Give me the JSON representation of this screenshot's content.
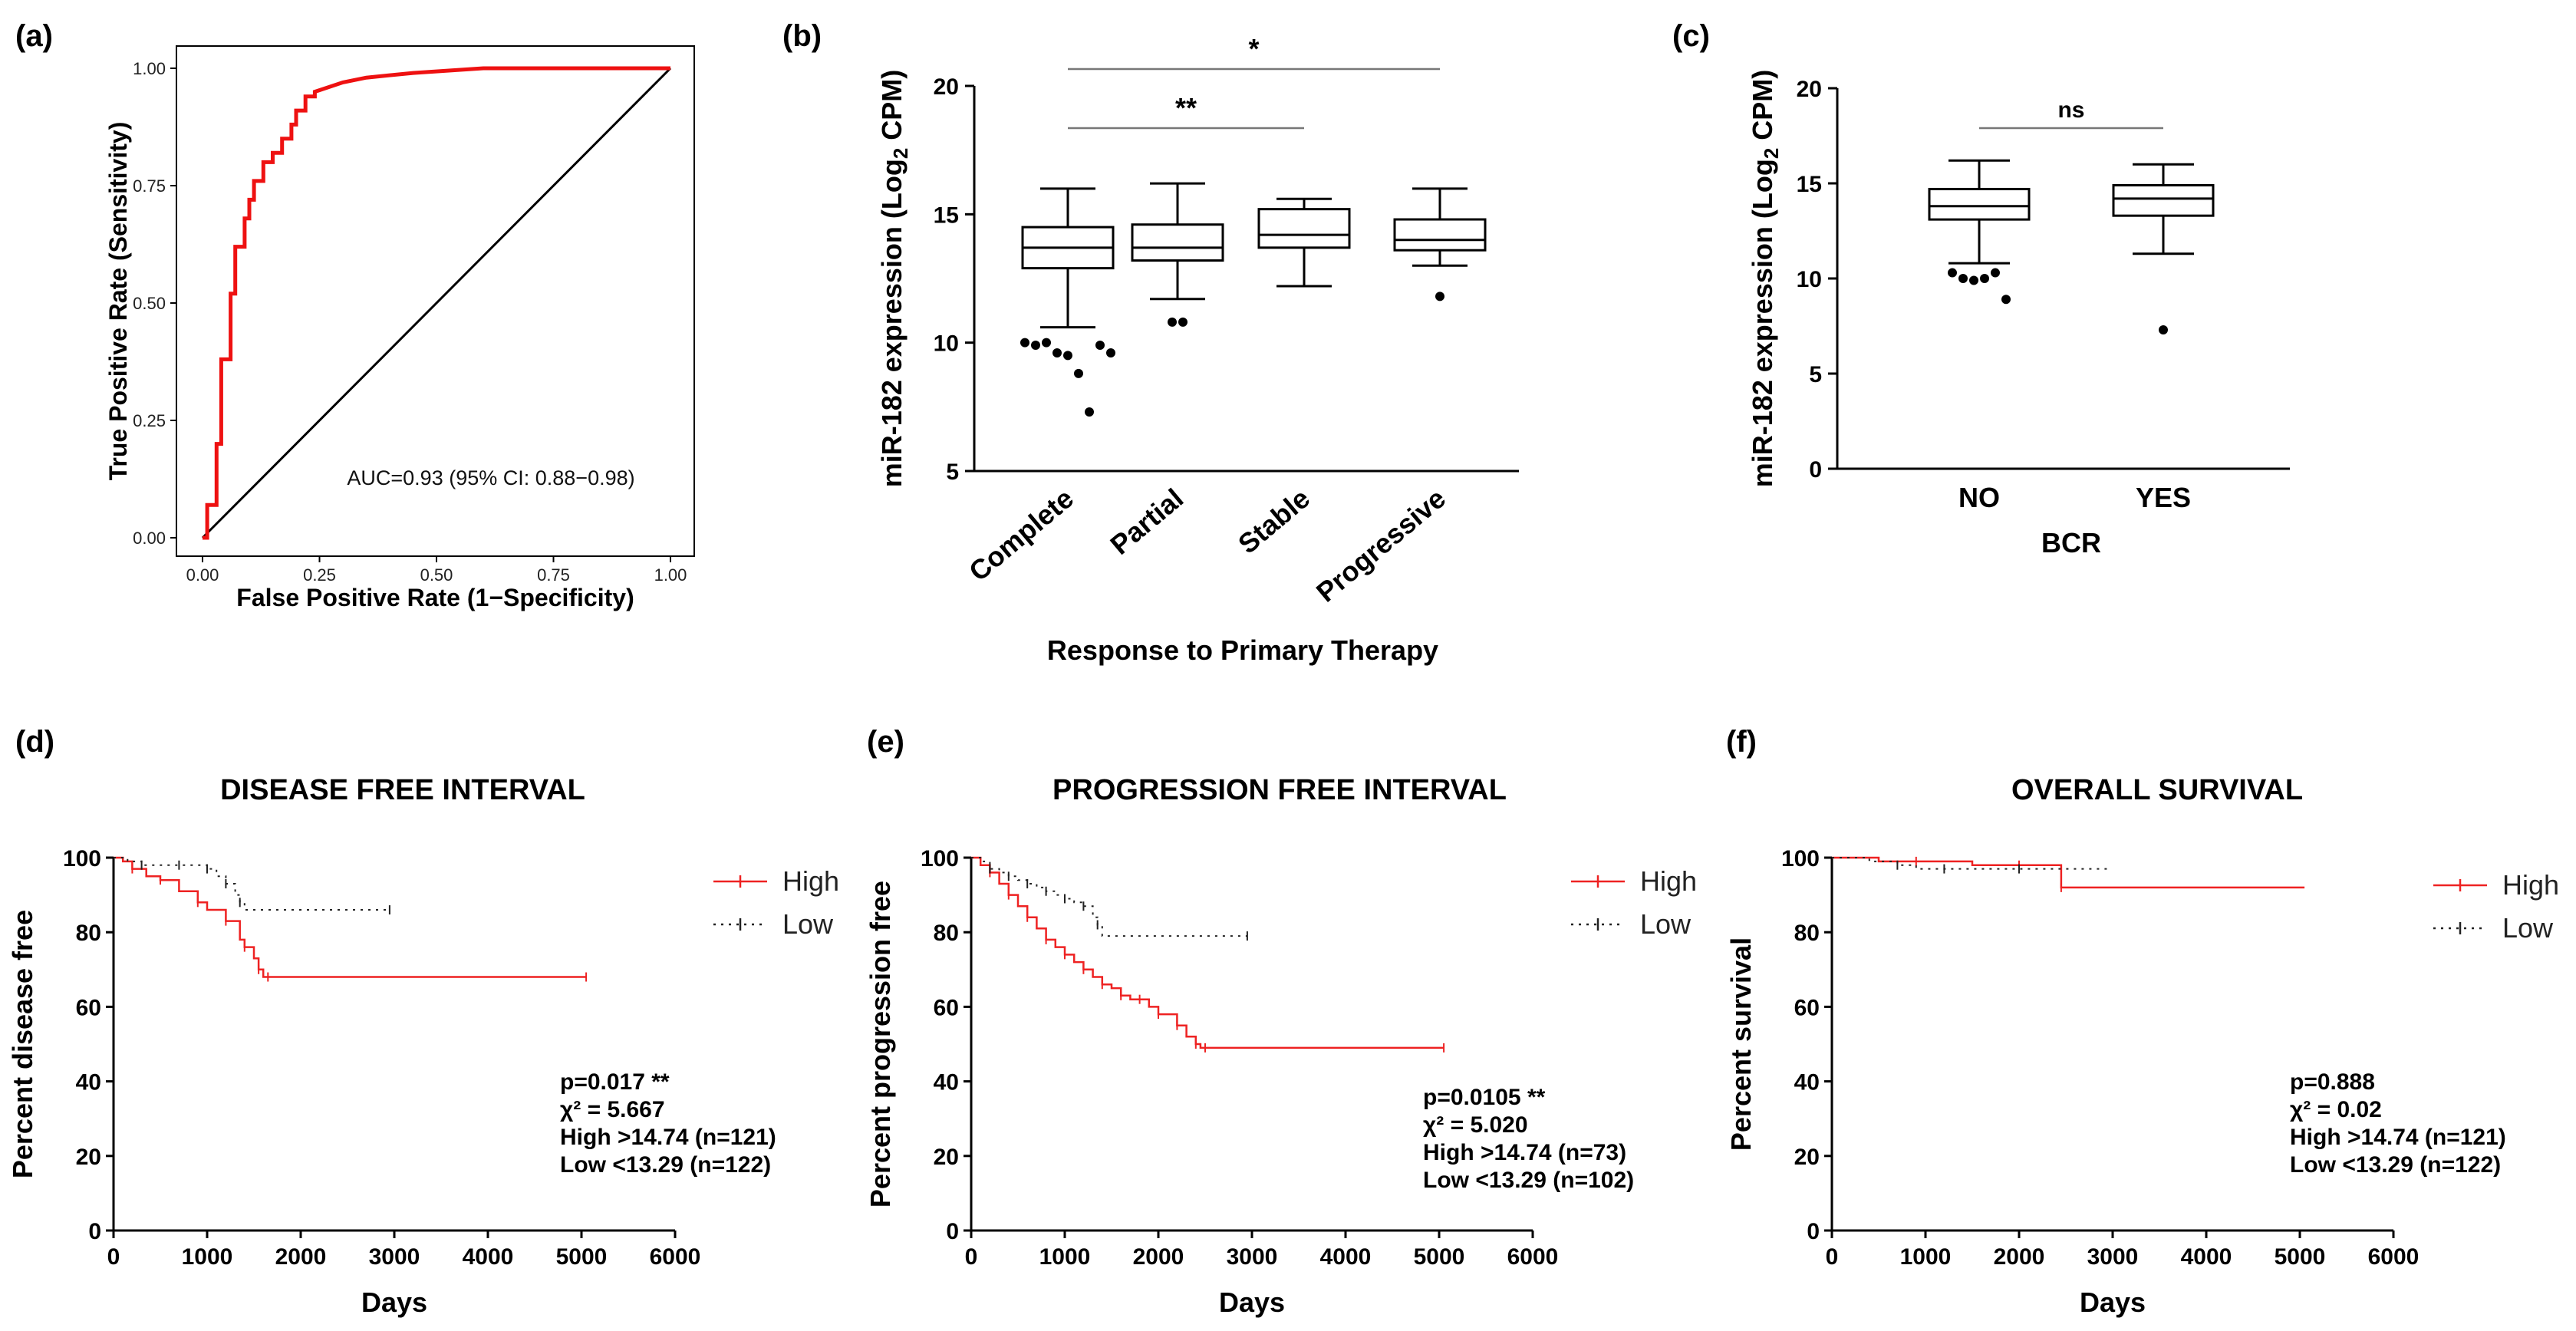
{
  "chart_data": [
    {
      "panel": "(a)",
      "type": "line",
      "xlabel": "False Positive Rate (1−Specificity)",
      "ylabel": "True Positive Rate (Sensitivity)",
      "xticks": [
        "0.00",
        "0.25",
        "0.50",
        "0.75",
        "1.00"
      ],
      "yticks": [
        "0.00",
        "0.25",
        "0.50",
        "0.75",
        "1.00"
      ],
      "xlim": [
        0,
        1
      ],
      "ylim": [
        0,
        1
      ],
      "annotation": "AUC=0.93 (95% CI: 0.88−0.98)",
      "color": "#ee1111",
      "roc": [
        [
          0,
          0
        ],
        [
          0.01,
          0
        ],
        [
          0.01,
          0.07
        ],
        [
          0.03,
          0.07
        ],
        [
          0.03,
          0.2
        ],
        [
          0.04,
          0.2
        ],
        [
          0.04,
          0.38
        ],
        [
          0.06,
          0.38
        ],
        [
          0.06,
          0.52
        ],
        [
          0.07,
          0.52
        ],
        [
          0.07,
          0.62
        ],
        [
          0.09,
          0.62
        ],
        [
          0.09,
          0.68
        ],
        [
          0.1,
          0.68
        ],
        [
          0.1,
          0.72
        ],
        [
          0.11,
          0.72
        ],
        [
          0.11,
          0.76
        ],
        [
          0.13,
          0.76
        ],
        [
          0.13,
          0.8
        ],
        [
          0.15,
          0.8
        ],
        [
          0.15,
          0.82
        ],
        [
          0.17,
          0.82
        ],
        [
          0.17,
          0.85
        ],
        [
          0.19,
          0.85
        ],
        [
          0.19,
          0.88
        ],
        [
          0.2,
          0.88
        ],
        [
          0.2,
          0.91
        ],
        [
          0.22,
          0.91
        ],
        [
          0.22,
          0.94
        ],
        [
          0.24,
          0.94
        ],
        [
          0.24,
          0.95
        ],
        [
          0.27,
          0.96
        ],
        [
          0.3,
          0.97
        ],
        [
          0.35,
          0.98
        ],
        [
          0.45,
          0.99
        ],
        [
          0.6,
          1.0
        ],
        [
          1.0,
          1.0
        ]
      ]
    },
    {
      "panel": "(b)",
      "type": "box",
      "xlabel": "Response to Primary Therapy",
      "ylabel": "miR-182 expression (Log",
      "ylabel_sub": "2",
      "ylabel_end": " CPM)",
      "ylim": [
        5,
        20
      ],
      "yticks": [
        "5",
        "10",
        "15",
        "20"
      ],
      "categories": [
        "Complete",
        "Partial",
        "Stable",
        "Progressive"
      ],
      "boxes": [
        {
          "min": 10.6,
          "q1": 12.9,
          "median": 13.7,
          "q3": 14.5,
          "max": 16.0,
          "outliers": [
            10.0,
            9.9,
            10.0,
            9.6,
            9.5,
            8.8,
            7.3,
            9.9,
            9.6
          ]
        },
        {
          "min": 11.7,
          "q1": 13.2,
          "median": 13.7,
          "q3": 14.6,
          "max": 16.2,
          "outliers": [
            10.8,
            10.8
          ]
        },
        {
          "min": 12.2,
          "q1": 13.7,
          "median": 14.2,
          "q3": 15.2,
          "max": 15.6,
          "outliers": []
        },
        {
          "min": 13.0,
          "q1": 13.6,
          "median": 14.0,
          "q3": 14.8,
          "max": 16.0,
          "outliers": [
            11.8
          ]
        }
      ],
      "sig": [
        {
          "from": 0,
          "to": 3,
          "label": "*"
        },
        {
          "from": 0,
          "to": 2,
          "label": "**"
        }
      ]
    },
    {
      "panel": "(c)",
      "type": "box",
      "xlabel": "BCR",
      "ylabel": "miR-182 expression (Log",
      "ylabel_sub": "2",
      "ylabel_end": " CPM)",
      "ylim": [
        0,
        20
      ],
      "yticks": [
        "0",
        "5",
        "10",
        "15",
        "20"
      ],
      "categories": [
        "NO",
        "YES"
      ],
      "boxes": [
        {
          "min": 10.8,
          "q1": 13.1,
          "median": 13.8,
          "q3": 14.7,
          "max": 16.2,
          "outliers": [
            10.3,
            10.0,
            9.9,
            10.0,
            10.3,
            8.9
          ]
        },
        {
          "min": 11.3,
          "q1": 13.3,
          "median": 14.2,
          "q3": 14.9,
          "max": 16.0,
          "outliers": [
            7.3
          ]
        }
      ],
      "sig": [
        {
          "from": 0,
          "to": 1,
          "label": "ns"
        }
      ]
    },
    {
      "panel": "(d)",
      "type": "line",
      "title": "DISEASE FREE INTERVAL",
      "xlabel": "Days",
      "ylabel": "Percent disease free",
      "xlim": [
        0,
        6000
      ],
      "ylim": [
        0,
        100
      ],
      "xticks": [
        "0",
        "1000",
        "2000",
        "3000",
        "4000",
        "5000",
        "6000"
      ],
      "yticks": [
        "0",
        "20",
        "40",
        "60",
        "80",
        "100"
      ],
      "legend": [
        "High",
        "Low"
      ],
      "stats": [
        "p=0.017 **",
        "χ² = 5.667",
        "High >14.74 (n=121)",
        "Low  <13.29 (n=122)"
      ],
      "series": [
        {
          "name": "High",
          "color": "#ee2222",
          "x": [
            0,
            100,
            200,
            350,
            500,
            700,
            900,
            1000,
            1200,
            1350,
            1400,
            1500,
            1550,
            1600,
            1650,
            3000,
            5050
          ],
          "y": [
            100,
            99,
            97,
            95,
            94,
            91,
            88,
            86,
            83,
            78,
            76,
            73,
            70,
            68,
            68,
            68,
            68
          ]
        },
        {
          "name": "Low",
          "color": "#222222",
          "x": [
            0,
            150,
            300,
            500,
            700,
            900,
            1000,
            1100,
            1200,
            1300,
            1350,
            1400,
            2950
          ],
          "y": [
            100,
            99,
            98,
            98,
            98,
            98,
            97,
            95,
            93,
            90,
            88,
            86,
            86
          ]
        }
      ]
    },
    {
      "panel": "(e)",
      "type": "line",
      "title": "PROGRESSION FREE INTERVAL",
      "xlabel": "Days",
      "ylabel": "Percent progression free",
      "xlim": [
        0,
        6000
      ],
      "ylim": [
        0,
        100
      ],
      "xticks": [
        "0",
        "1000",
        "2000",
        "3000",
        "4000",
        "5000",
        "6000"
      ],
      "yticks": [
        "0",
        "20",
        "40",
        "60",
        "80",
        "100"
      ],
      "legend": [
        "High",
        "Low"
      ],
      "stats": [
        "p=0.0105 **",
        "χ² = 5.020",
        "High >14.74 (n=73)",
        "Low  <13.29 (n=102)"
      ],
      "series": [
        {
          "name": "High",
          "color": "#ee2222",
          "x": [
            0,
            100,
            200,
            300,
            400,
            500,
            600,
            700,
            800,
            900,
            1000,
            1100,
            1200,
            1300,
            1400,
            1500,
            1600,
            1700,
            1800,
            1900,
            2000,
            2100,
            2200,
            2300,
            2400,
            2450,
            2500,
            3000,
            5050
          ],
          "y": [
            100,
            98,
            96,
            93,
            90,
            87,
            84,
            81,
            78,
            76,
            74,
            72,
            70,
            68,
            66,
            65,
            63,
            62,
            62,
            60,
            58,
            58,
            55,
            52,
            50,
            49,
            49,
            49,
            49
          ]
        },
        {
          "name": "Low",
          "color": "#222222",
          "x": [
            0,
            100,
            200,
            300,
            400,
            500,
            600,
            700,
            800,
            900,
            1000,
            1100,
            1200,
            1300,
            1350,
            1400,
            2950
          ],
          "y": [
            100,
            99,
            97,
            96,
            95,
            94,
            93,
            92,
            91,
            90,
            89,
            88,
            87,
            84,
            82,
            79,
            79
          ]
        }
      ]
    },
    {
      "panel": "(f)",
      "type": "line",
      "title": "OVERALL SURVIVAL",
      "xlabel": "Days",
      "ylabel": "Percent survival",
      "xlim": [
        0,
        6000
      ],
      "ylim": [
        0,
        100
      ],
      "xticks": [
        "0",
        "1000",
        "2000",
        "3000",
        "4000",
        "5000",
        "6000"
      ],
      "yticks": [
        "0",
        "20",
        "40",
        "60",
        "80",
        "100"
      ],
      "legend": [
        "High",
        "Low"
      ],
      "stats": [
        "p=0.888",
        "χ² = 0.02",
        "High >14.74 (n=121)",
        "Low  <13.29 (n=122)"
      ],
      "series": [
        {
          "name": "High",
          "color": "#ee2222",
          "x": [
            0,
            500,
            900,
            1500,
            2000,
            2400,
            2450,
            5050
          ],
          "y": [
            100,
            99,
            99,
            98,
            98,
            98,
            92,
            92
          ]
        },
        {
          "name": "Low",
          "color": "#222222",
          "x": [
            0,
            400,
            700,
            900,
            1200,
            1500,
            2000,
            2950
          ],
          "y": [
            100,
            99,
            98,
            97,
            97,
            97,
            97,
            97
          ]
        }
      ]
    }
  ]
}
